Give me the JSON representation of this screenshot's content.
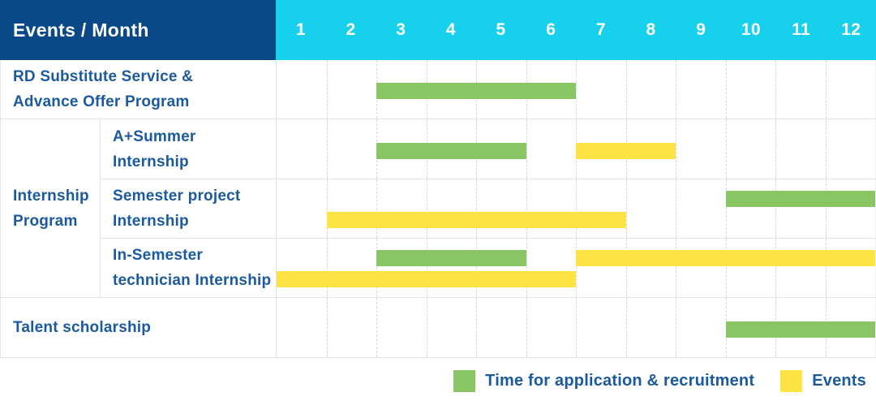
{
  "header": {
    "title": "Events / Month"
  },
  "colors": {
    "navy": "#0b4887",
    "cyan": "#16d0ec",
    "green": "#8ac563",
    "yellow": "#fee345",
    "label": "#1b5a9e",
    "grid_solid": "#e3e5e8",
    "grid_dash": "#d5d8db"
  },
  "chart_data": {
    "type": "gantt",
    "x_unit": "month",
    "x_range": [
      1,
      12
    ],
    "months": [
      "1",
      "2",
      "3",
      "4",
      "5",
      "6",
      "7",
      "8",
      "9",
      "10",
      "11",
      "12"
    ],
    "legend": {
      "application": {
        "label": "Time for application & recruitment",
        "color": "green"
      },
      "event": {
        "label": "Events",
        "color": "yellow"
      }
    },
    "rows": [
      {
        "label": "RD Substitute Service &\nAdvance Offer Program",
        "tracks": 1,
        "bars": [
          {
            "kind": "application",
            "start_month": 3,
            "end_month": 6,
            "track": 0
          }
        ]
      },
      {
        "group": "Internship\nProgram",
        "label": "A+Summer\nInternship",
        "tracks": 1,
        "bars": [
          {
            "kind": "application",
            "start_month": 3,
            "end_month": 5,
            "track": 0
          },
          {
            "kind": "event",
            "start_month": 7,
            "end_month": 8,
            "track": 0
          }
        ]
      },
      {
        "label": "Semester project\nInternship",
        "tracks": 2,
        "bars": [
          {
            "kind": "application",
            "start_month": 10,
            "end_month": 12,
            "track": 0
          },
          {
            "kind": "event",
            "start_month": 2,
            "end_month": 7,
            "track": 1
          }
        ]
      },
      {
        "label": "In-Semester\ntechnician Internship",
        "tracks": 2,
        "bars": [
          {
            "kind": "application",
            "start_month": 3,
            "end_month": 5,
            "track": 0
          },
          {
            "kind": "event",
            "start_month": 7,
            "end_month": 12,
            "track": 0
          },
          {
            "kind": "event",
            "start_month": 1,
            "end_month": 6,
            "track": 1
          }
        ]
      },
      {
        "label": "Talent scholarship",
        "tracks": 1,
        "bars": [
          {
            "kind": "application",
            "start_month": 10,
            "end_month": 12,
            "track": 0
          }
        ]
      }
    ]
  }
}
